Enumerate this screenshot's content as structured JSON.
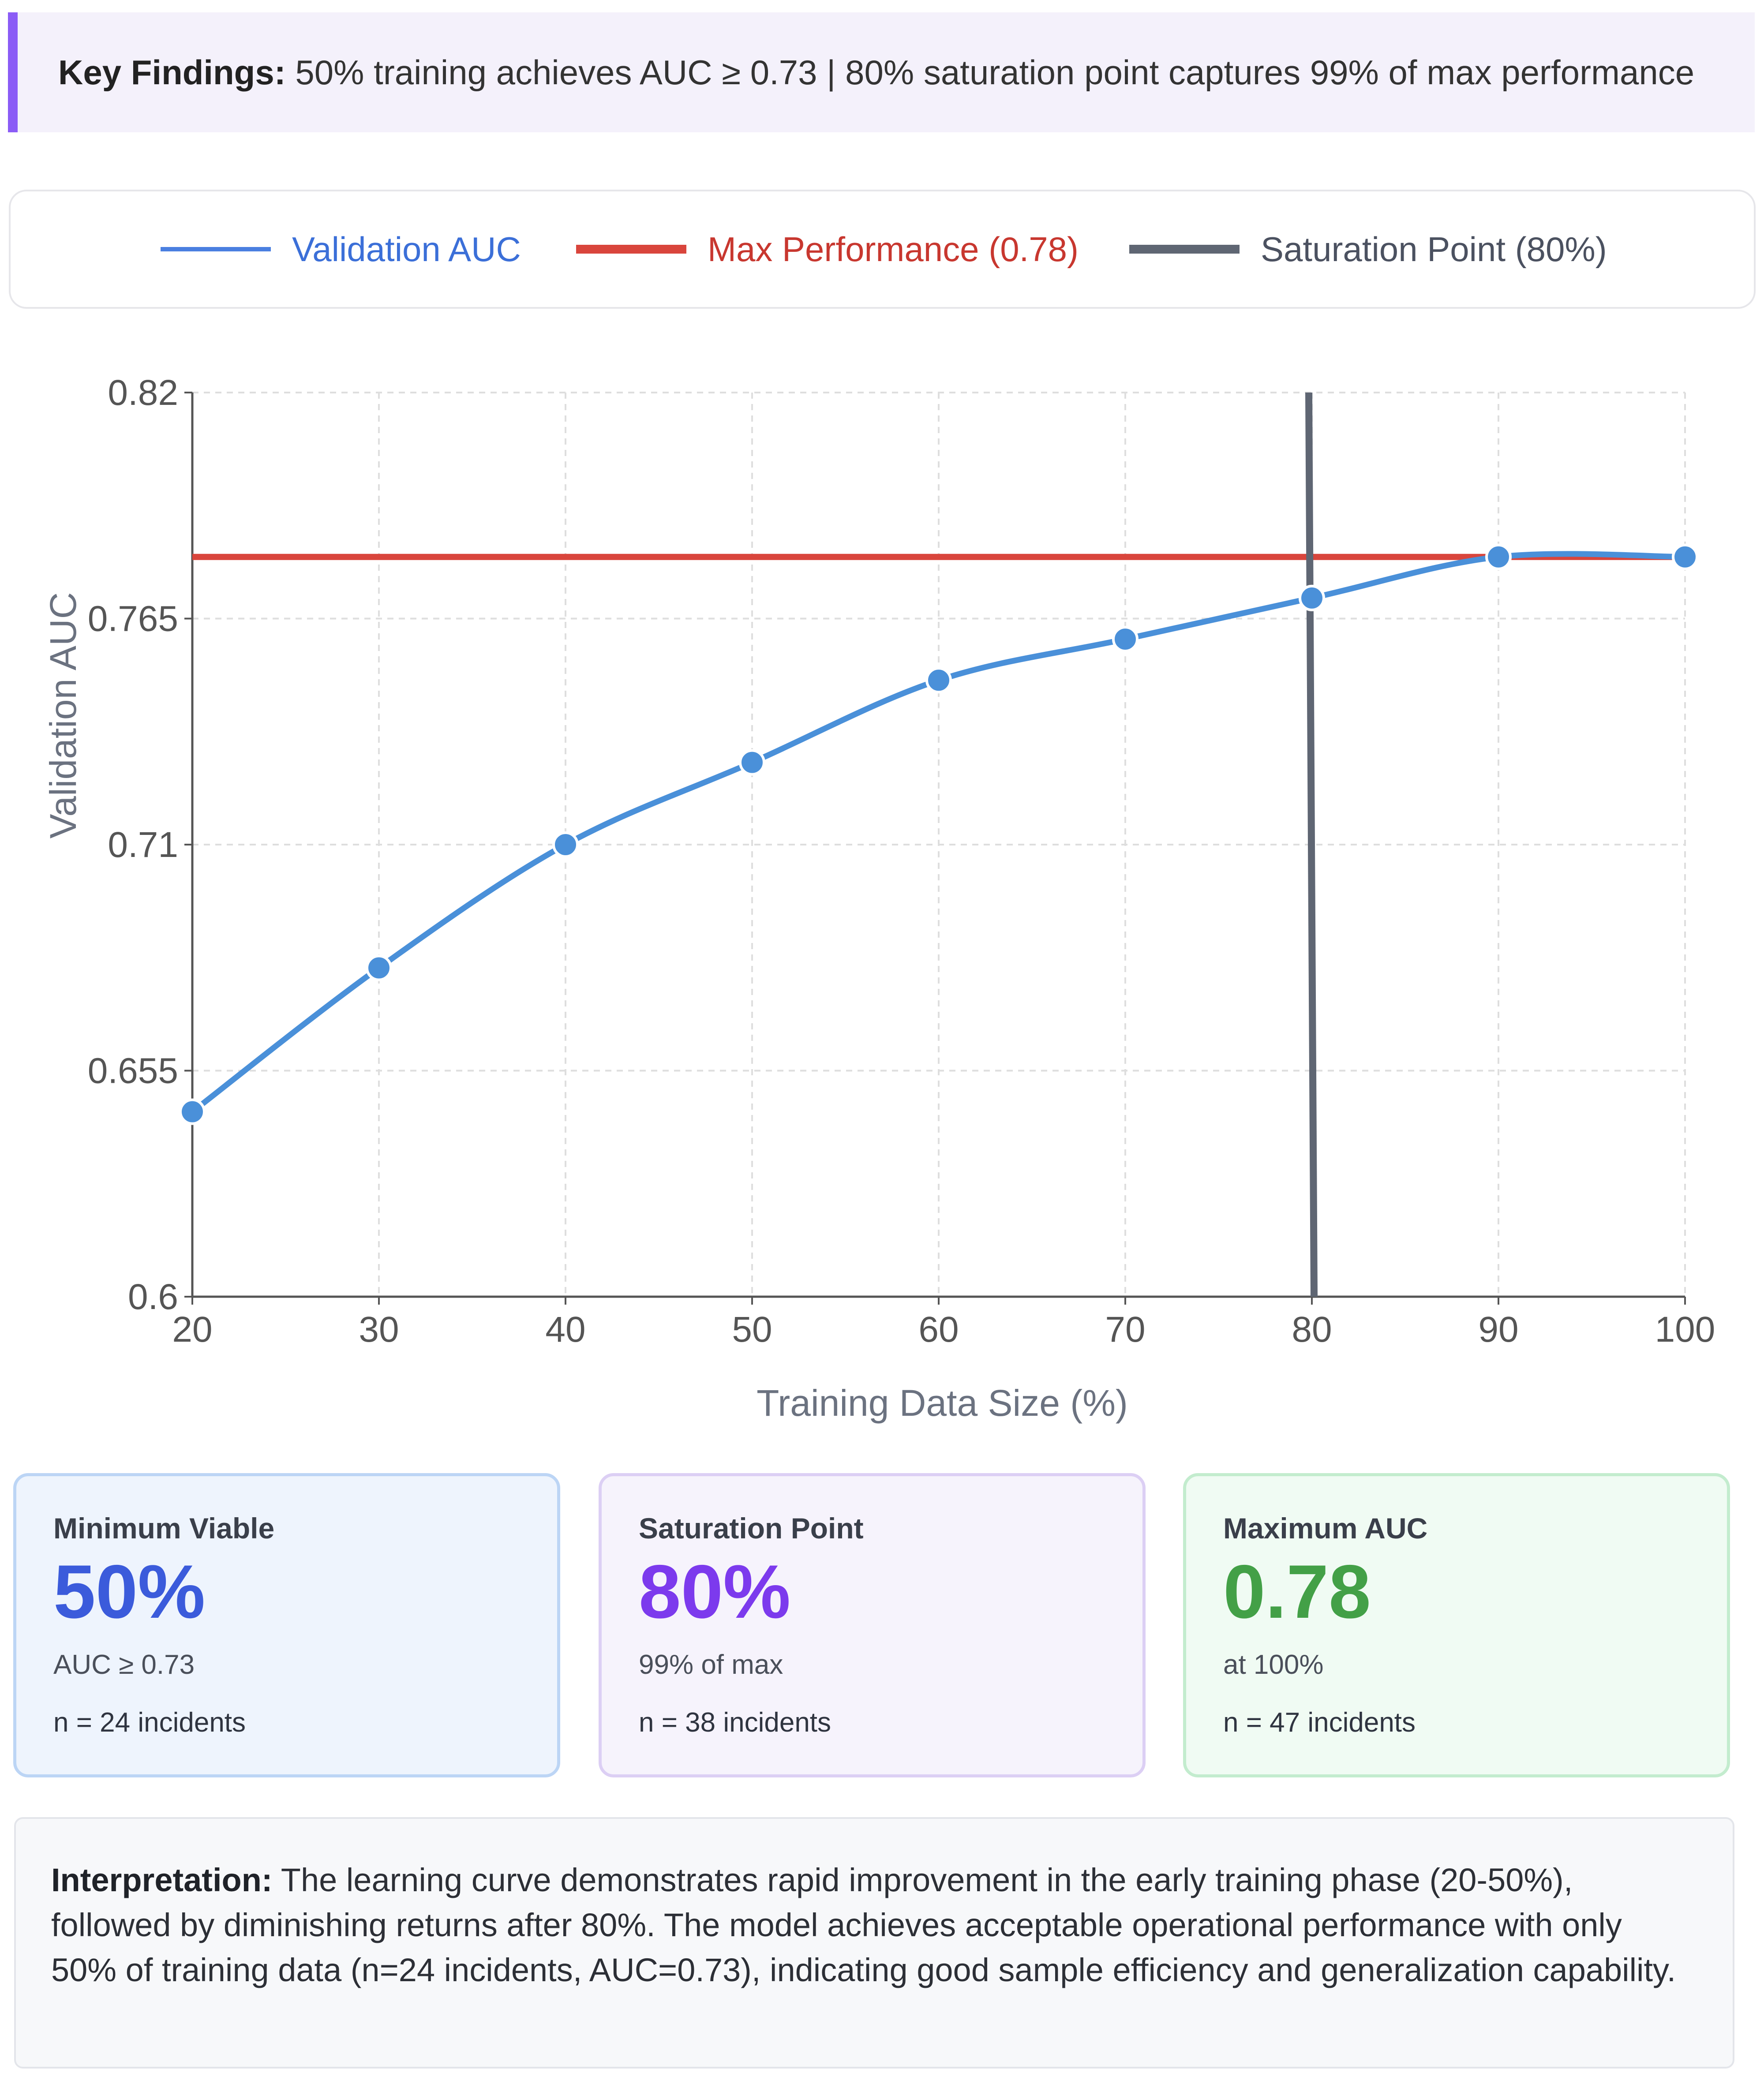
{
  "banner": {
    "label": "Key Findings:",
    "text": " 50% training achieves AUC ≥ 0.73 | 80% saturation point captures 99% of max performance"
  },
  "legend": [
    {
      "label": "Validation AUC",
      "color": "#4a7fe0"
    },
    {
      "label": "Max Performance (0.78)",
      "color": "#d9453c"
    },
    {
      "label": "Saturation Point (80%)",
      "color": "#5f6673"
    }
  ],
  "chart_data": {
    "type": "line",
    "xlabel": "Training Data Size (%)",
    "ylabel": "Validation AUC",
    "xlim": [
      20,
      100
    ],
    "ylim": [
      0.6,
      0.82
    ],
    "x_ticks": [
      "20",
      "30",
      "40",
      "50",
      "60",
      "70",
      "80",
      "90",
      "100"
    ],
    "y_ticks": [
      "0.6",
      "0.655",
      "0.71",
      "0.765",
      "0.82"
    ],
    "grid": true,
    "legend_position": "top",
    "series": [
      {
        "name": "Validation AUC",
        "color": "#4a90d9",
        "x": [
          20,
          30,
          40,
          50,
          60,
          70,
          80,
          90,
          100
        ],
        "y": [
          0.645,
          0.68,
          0.71,
          0.73,
          0.75,
          0.76,
          0.77,
          0.78,
          0.78
        ]
      }
    ],
    "hlines": [
      {
        "name": "Max Performance (0.78)",
        "y": 0.78,
        "color": "#d9453c"
      }
    ],
    "vlines": [
      {
        "name": "Saturation Point (80%)",
        "x": 80,
        "color": "#5f6673"
      }
    ]
  },
  "cards": [
    {
      "title": "Minimum Viable",
      "value": "50%",
      "sub": "AUC ≥ 0.73",
      "count": "n = 24 incidents",
      "accent": "#3b5bdb",
      "bg": "#eef4fd",
      "border": "#bcd5f5"
    },
    {
      "title": "Saturation Point",
      "value": "80%",
      "sub": "99% of max",
      "count": "n = 38 incidents",
      "accent": "#7c3aed",
      "bg": "#f6f3fc",
      "border": "#dccff4"
    },
    {
      "title": "Maximum AUC",
      "value": "0.78",
      "sub": "at 100%",
      "count": "n = 47 incidents",
      "accent": "#43a047",
      "bg": "#f0fbf3",
      "border": "#c3ecce"
    }
  ],
  "interpretation": {
    "label": "Interpretation:",
    "text": " The learning curve demonstrates rapid improvement in the early training phase (20-50%), followed by diminishing returns after 80%. The model achieves acceptable operational performance with only 50% of training data (n=24 incidents, AUC=0.73), indicating good sample efficiency and generalization capability."
  }
}
